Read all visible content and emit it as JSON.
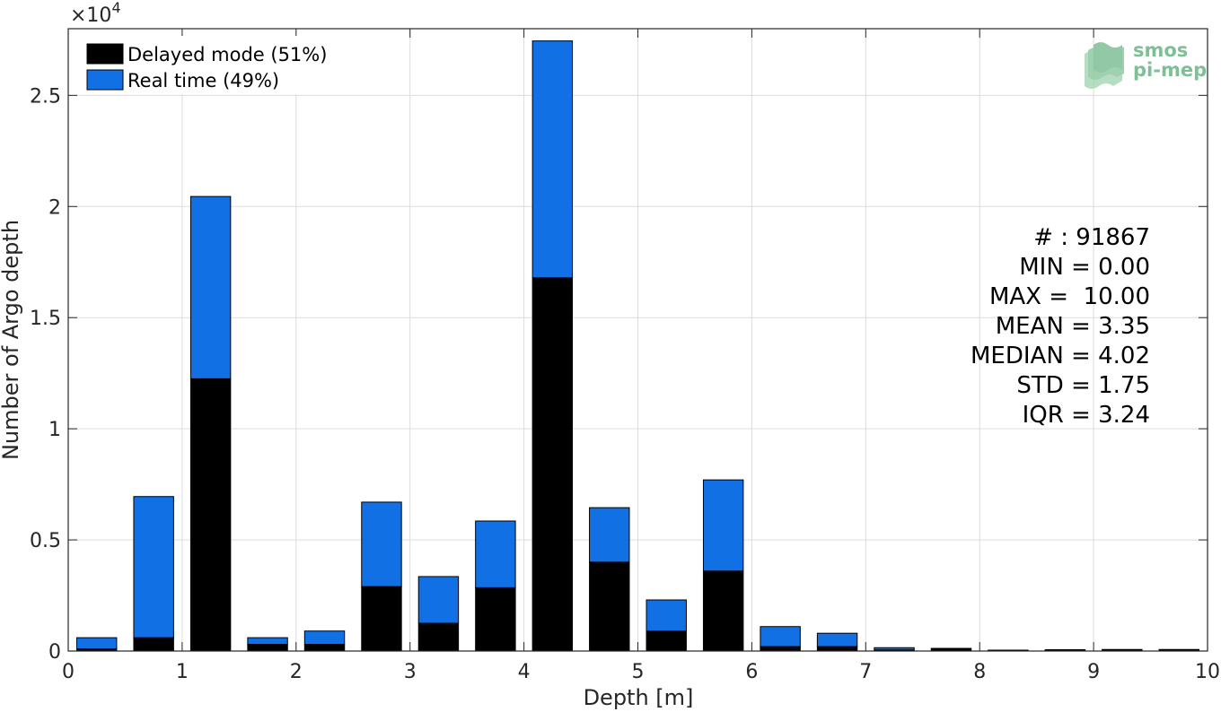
{
  "chart_data": {
    "type": "bar",
    "stacked": true,
    "xlabel": "Depth [m]",
    "ylabel": "Number of Argo depth",
    "y_exponent_label": "×10",
    "y_exponent_power": "4",
    "xlim": [
      0,
      10
    ],
    "ylim": [
      0,
      2.8
    ],
    "grid": true,
    "legend_position": "top-left",
    "x_ticks": [
      {
        "value": 0,
        "label": "0"
      },
      {
        "value": 1,
        "label": "1"
      },
      {
        "value": 2,
        "label": "2"
      },
      {
        "value": 3,
        "label": "3"
      },
      {
        "value": 4,
        "label": "4"
      },
      {
        "value": 5,
        "label": "5"
      },
      {
        "value": 6,
        "label": "6"
      },
      {
        "value": 7,
        "label": "7"
      },
      {
        "value": 8,
        "label": "8"
      },
      {
        "value": 9,
        "label": "9"
      },
      {
        "value": 10,
        "label": "10"
      }
    ],
    "y_ticks": [
      {
        "value": 0,
        "label": "0"
      },
      {
        "value": 0.5,
        "label": "0.5"
      },
      {
        "value": 1,
        "label": "1"
      },
      {
        "value": 1.5,
        "label": "1.5"
      },
      {
        "value": 2,
        "label": "2"
      },
      {
        "value": 2.5,
        "label": "2.5"
      }
    ],
    "x": [
      0.25,
      0.75,
      1.25,
      1.75,
      2.25,
      2.75,
      3.25,
      3.75,
      4.25,
      4.75,
      5.25,
      5.75,
      6.25,
      6.75,
      7.25,
      7.75,
      8.25,
      8.75,
      9.25,
      9.75
    ],
    "bar_width": 0.35,
    "series": [
      {
        "name": "Delayed mode (51%)",
        "color": "#000000",
        "values": [
          0.01,
          0.06,
          1.225,
          0.03,
          0.03,
          0.29,
          0.125,
          0.285,
          1.68,
          0.4,
          0.09,
          0.36,
          0.02,
          0.02,
          0.005,
          0.01,
          0.003,
          0.004,
          0.005,
          0.005
        ]
      },
      {
        "name": "Real time (49%)",
        "color": "#1170e4",
        "values": [
          0.05,
          0.635,
          0.82,
          0.03,
          0.06,
          0.38,
          0.21,
          0.3,
          1.065,
          0.245,
          0.14,
          0.41,
          0.09,
          0.06,
          0.01,
          0.002,
          0.001,
          0.002,
          0.002,
          0.002
        ]
      }
    ]
  },
  "stats": [
    "# : 91867",
    "MIN = 0.00",
    "MAX =  10.00",
    "MEAN = 3.35",
    "MEDIAN = 4.02",
    "STD = 1.75",
    "IQR = 3.24"
  ],
  "logo": {
    "line1": "smos",
    "line2": "pi-mep",
    "color": "#7fbf96"
  }
}
